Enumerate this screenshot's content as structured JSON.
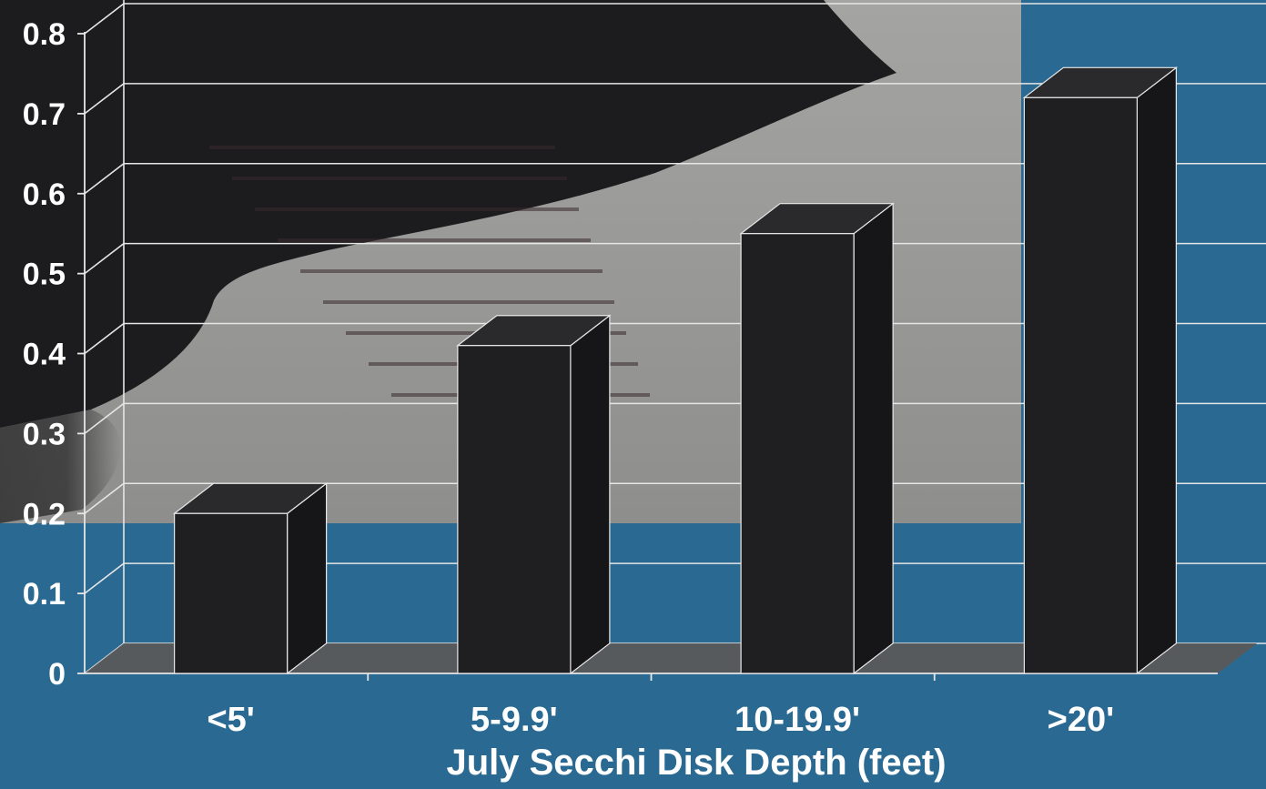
{
  "chart_data": {
    "type": "bar",
    "style": "3d",
    "categories": [
      "<5'",
      "5-9.9'",
      "10-19.9'",
      ">20'"
    ],
    "values": [
      0.2,
      0.41,
      0.55,
      0.72
    ],
    "title": "",
    "xlabel": "July Secchi Disk Depth (feet)",
    "ylabel": "",
    "ylim": [
      0,
      0.8
    ],
    "yticks": [
      "0",
      "0.1",
      "0.2",
      "0.3",
      "0.4",
      "0.5",
      "0.6",
      "0.7",
      "0.8"
    ],
    "grid": true,
    "legend": "none"
  },
  "colors": {
    "background": "#2a6a92",
    "photo_gray": "#9a9a98",
    "photo_dark": "#1c1c1e",
    "bar_front": "#1f1f21",
    "bar_top": "#2a2a2c",
    "bar_side": "#161618",
    "bar_edge": "#e8e8e8",
    "grid": "#e6e6e6",
    "floor": "#5a5a5a",
    "text": "#ffffff"
  }
}
